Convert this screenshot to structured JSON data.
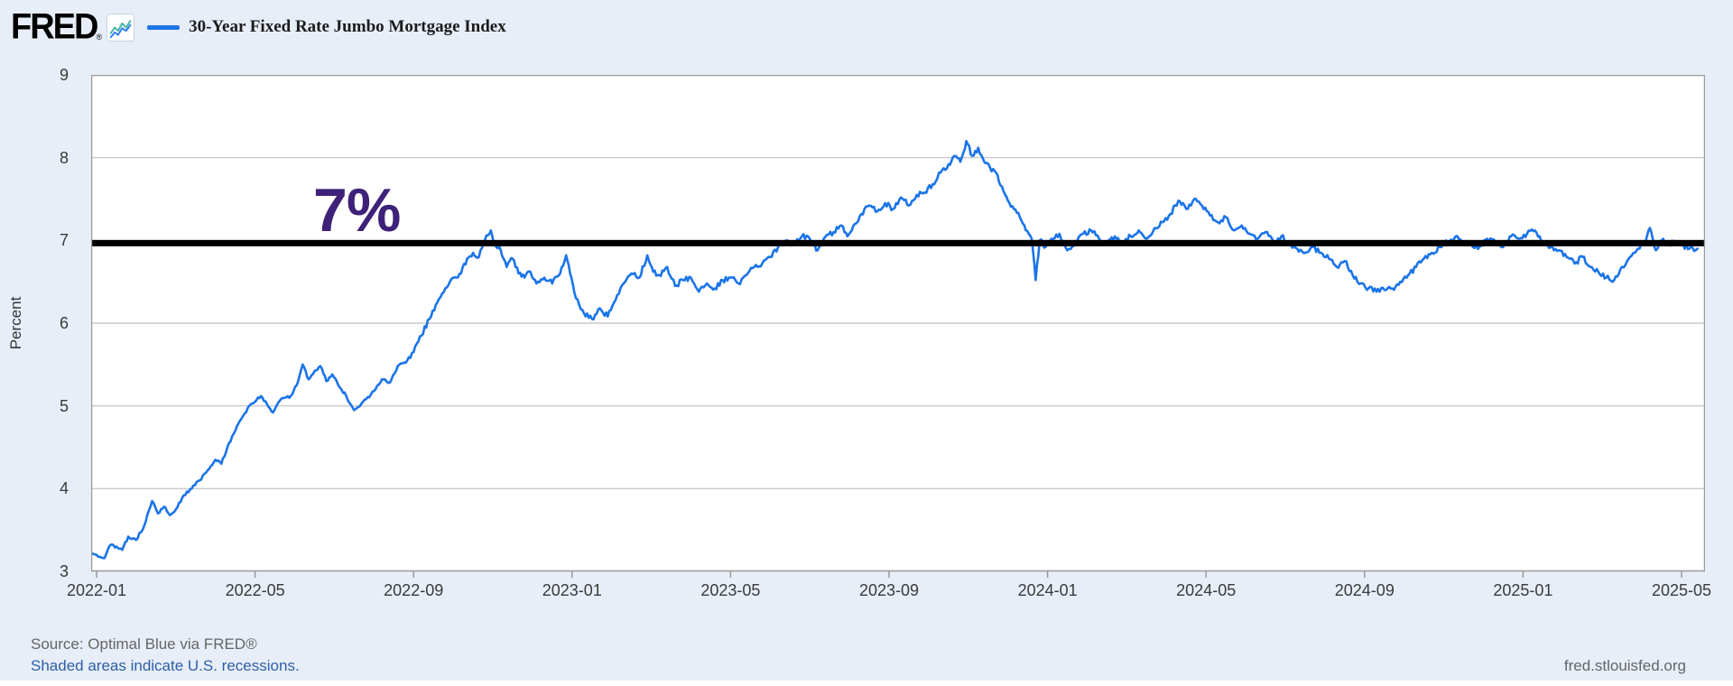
{
  "header": {
    "logo_text": "FRED",
    "registered_mark": "®",
    "series_label": "30-Year Fixed Rate Jumbo Mortgage Index"
  },
  "footer": {
    "source_text": "Source: Optimal Blue via FRED®",
    "recession_note": "Shaded areas indicate U.S. recessions.",
    "site_link": "fred.stlouisfed.org"
  },
  "annotation": {
    "label": "7%",
    "line_value": 7,
    "label_color": "#3e2178",
    "line_color": "#000000"
  },
  "colors": {
    "background": "#e7eef8",
    "plot_background": "#ffffff",
    "series_line": "#1b74e8",
    "grid": "#cccccc",
    "axis_border": "#999999",
    "tick_text": "#3a3a3a",
    "source_text": "#666666",
    "link_text": "#2f5fa5",
    "logo_icon_teal": "#45b5a9",
    "logo_icon_blue": "#2f7fe8"
  },
  "chart_data": {
    "type": "line",
    "title": "30-Year Fixed Rate Jumbo Mortgage Index",
    "xlabel": "",
    "ylabel": "Percent",
    "ylim": [
      3,
      9
    ],
    "yticks": [
      9,
      8,
      7,
      6,
      5,
      4,
      3
    ],
    "grid": "horizontal-only",
    "legend_position": "top-left",
    "x_tick_labels": [
      "2022-01",
      "2022-05",
      "2022-09",
      "2023-01",
      "2023-05",
      "2023-09",
      "2024-01",
      "2024-05",
      "2024-09",
      "2025-01",
      "2025-05"
    ],
    "x_tick_months": [
      0,
      4,
      8,
      12,
      16,
      20,
      24,
      28,
      32,
      36,
      40
    ],
    "x_range_months": [
      -0.13,
      40.4
    ],
    "annotation_line": {
      "value": 7,
      "label": "7%",
      "style": "thick-black-horizontal"
    },
    "series": [
      {
        "name": "30-Year Fixed Rate Jumbo Mortgage Index",
        "color": "#1b74e8",
        "units": "Percent",
        "points_month_value": [
          [
            -0.13,
            3.22
          ],
          [
            0,
            3.2
          ],
          [
            0.2,
            3.16
          ],
          [
            0.35,
            3.32
          ],
          [
            0.5,
            3.3
          ],
          [
            0.65,
            3.26
          ],
          [
            0.8,
            3.42
          ],
          [
            1.0,
            3.38
          ],
          [
            1.2,
            3.55
          ],
          [
            1.4,
            3.85
          ],
          [
            1.55,
            3.7
          ],
          [
            1.7,
            3.78
          ],
          [
            1.85,
            3.68
          ],
          [
            2.0,
            3.75
          ],
          [
            2.2,
            3.92
          ],
          [
            2.4,
            4.0
          ],
          [
            2.6,
            4.1
          ],
          [
            2.8,
            4.22
          ],
          [
            3.0,
            4.35
          ],
          [
            3.15,
            4.3
          ],
          [
            3.3,
            4.5
          ],
          [
            3.5,
            4.7
          ],
          [
            3.7,
            4.88
          ],
          [
            3.85,
            5.0
          ],
          [
            4.0,
            5.05
          ],
          [
            4.15,
            5.12
          ],
          [
            4.3,
            5.02
          ],
          [
            4.45,
            4.92
          ],
          [
            4.6,
            5.05
          ],
          [
            4.75,
            5.1
          ],
          [
            4.9,
            5.12
          ],
          [
            5.05,
            5.25
          ],
          [
            5.2,
            5.5
          ],
          [
            5.35,
            5.32
          ],
          [
            5.5,
            5.42
          ],
          [
            5.65,
            5.48
          ],
          [
            5.8,
            5.3
          ],
          [
            5.95,
            5.38
          ],
          [
            6.1,
            5.25
          ],
          [
            6.3,
            5.12
          ],
          [
            6.5,
            4.95
          ],
          [
            6.65,
            5.0
          ],
          [
            6.8,
            5.08
          ],
          [
            7.0,
            5.18
          ],
          [
            7.2,
            5.32
          ],
          [
            7.4,
            5.28
          ],
          [
            7.6,
            5.48
          ],
          [
            7.8,
            5.52
          ],
          [
            8.0,
            5.65
          ],
          [
            8.2,
            5.85
          ],
          [
            8.4,
            6.05
          ],
          [
            8.6,
            6.25
          ],
          [
            8.8,
            6.42
          ],
          [
            9.0,
            6.55
          ],
          [
            9.2,
            6.6
          ],
          [
            9.35,
            6.78
          ],
          [
            9.5,
            6.85
          ],
          [
            9.65,
            6.8
          ],
          [
            9.8,
            7.0
          ],
          [
            9.95,
            7.12
          ],
          [
            10.05,
            6.95
          ],
          [
            10.2,
            6.88
          ],
          [
            10.35,
            6.68
          ],
          [
            10.5,
            6.78
          ],
          [
            10.65,
            6.6
          ],
          [
            10.8,
            6.55
          ],
          [
            10.95,
            6.62
          ],
          [
            11.1,
            6.48
          ],
          [
            11.3,
            6.55
          ],
          [
            11.5,
            6.48
          ],
          [
            11.7,
            6.6
          ],
          [
            11.85,
            6.82
          ],
          [
            11.95,
            6.6
          ],
          [
            12.1,
            6.3
          ],
          [
            12.3,
            6.12
          ],
          [
            12.5,
            6.05
          ],
          [
            12.7,
            6.18
          ],
          [
            12.9,
            6.08
          ],
          [
            13.1,
            6.28
          ],
          [
            13.3,
            6.48
          ],
          [
            13.5,
            6.6
          ],
          [
            13.7,
            6.55
          ],
          [
            13.9,
            6.82
          ],
          [
            14.05,
            6.62
          ],
          [
            14.2,
            6.58
          ],
          [
            14.4,
            6.68
          ],
          [
            14.6,
            6.45
          ],
          [
            14.8,
            6.52
          ],
          [
            15.0,
            6.55
          ],
          [
            15.2,
            6.38
          ],
          [
            15.4,
            6.48
          ],
          [
            15.6,
            6.42
          ],
          [
            15.8,
            6.52
          ],
          [
            16.0,
            6.55
          ],
          [
            16.2,
            6.48
          ],
          [
            16.4,
            6.58
          ],
          [
            16.6,
            6.68
          ],
          [
            16.8,
            6.72
          ],
          [
            17.0,
            6.8
          ],
          [
            17.2,
            6.92
          ],
          [
            17.4,
            7.0
          ],
          [
            17.6,
            6.95
          ],
          [
            17.8,
            7.05
          ],
          [
            18.0,
            7.02
          ],
          [
            18.2,
            6.88
          ],
          [
            18.4,
            7.05
          ],
          [
            18.6,
            7.1
          ],
          [
            18.8,
            7.18
          ],
          [
            18.95,
            7.05
          ],
          [
            19.1,
            7.18
          ],
          [
            19.3,
            7.32
          ],
          [
            19.5,
            7.42
          ],
          [
            19.7,
            7.35
          ],
          [
            19.9,
            7.45
          ],
          [
            20.1,
            7.38
          ],
          [
            20.3,
            7.52
          ],
          [
            20.5,
            7.42
          ],
          [
            20.7,
            7.55
          ],
          [
            20.9,
            7.58
          ],
          [
            21.1,
            7.68
          ],
          [
            21.3,
            7.82
          ],
          [
            21.5,
            7.92
          ],
          [
            21.65,
            8.02
          ],
          [
            21.8,
            7.95
          ],
          [
            21.95,
            8.2
          ],
          [
            22.1,
            8.02
          ],
          [
            22.25,
            8.12
          ],
          [
            22.4,
            7.95
          ],
          [
            22.55,
            7.88
          ],
          [
            22.7,
            7.82
          ],
          [
            22.85,
            7.65
          ],
          [
            23.0,
            7.48
          ],
          [
            23.15,
            7.38
          ],
          [
            23.3,
            7.28
          ],
          [
            23.45,
            7.12
          ],
          [
            23.6,
            7.02
          ],
          [
            23.7,
            6.52
          ],
          [
            23.8,
            7.0
          ],
          [
            23.95,
            6.92
          ],
          [
            24.1,
            7.02
          ],
          [
            24.3,
            7.08
          ],
          [
            24.5,
            6.88
          ],
          [
            24.7,
            6.98
          ],
          [
            24.9,
            7.08
          ],
          [
            25.1,
            7.12
          ],
          [
            25.3,
            7.02
          ],
          [
            25.5,
            6.95
          ],
          [
            25.7,
            7.05
          ],
          [
            25.9,
            6.98
          ],
          [
            26.1,
            7.05
          ],
          [
            26.3,
            7.12
          ],
          [
            26.5,
            7.02
          ],
          [
            26.7,
            7.15
          ],
          [
            26.9,
            7.22
          ],
          [
            27.1,
            7.32
          ],
          [
            27.3,
            7.48
          ],
          [
            27.5,
            7.38
          ],
          [
            27.7,
            7.5
          ],
          [
            27.9,
            7.42
          ],
          [
            28.1,
            7.3
          ],
          [
            28.3,
            7.22
          ],
          [
            28.5,
            7.28
          ],
          [
            28.7,
            7.12
          ],
          [
            28.9,
            7.18
          ],
          [
            29.1,
            7.08
          ],
          [
            29.3,
            7.02
          ],
          [
            29.5,
            7.1
          ],
          [
            29.7,
            6.98
          ],
          [
            29.9,
            7.05
          ],
          [
            30.1,
            6.95
          ],
          [
            30.3,
            6.9
          ],
          [
            30.5,
            6.85
          ],
          [
            30.7,
            6.92
          ],
          [
            30.9,
            6.85
          ],
          [
            31.1,
            6.78
          ],
          [
            31.3,
            6.68
          ],
          [
            31.5,
            6.75
          ],
          [
            31.7,
            6.58
          ],
          [
            31.9,
            6.48
          ],
          [
            32.1,
            6.42
          ],
          [
            32.3,
            6.38
          ],
          [
            32.5,
            6.4
          ],
          [
            32.7,
            6.42
          ],
          [
            32.9,
            6.5
          ],
          [
            33.1,
            6.58
          ],
          [
            33.3,
            6.68
          ],
          [
            33.5,
            6.78
          ],
          [
            33.7,
            6.85
          ],
          [
            33.9,
            6.92
          ],
          [
            34.1,
            6.98
          ],
          [
            34.3,
            7.05
          ],
          [
            34.5,
            6.98
          ],
          [
            34.7,
            6.95
          ],
          [
            34.9,
            6.92
          ],
          [
            35.1,
            7.02
          ],
          [
            35.3,
            6.98
          ],
          [
            35.5,
            6.92
          ],
          [
            35.7,
            7.05
          ],
          [
            35.9,
            7.02
          ],
          [
            36.1,
            7.08
          ],
          [
            36.3,
            7.12
          ],
          [
            36.5,
            6.95
          ],
          [
            36.7,
            6.92
          ],
          [
            36.9,
            6.88
          ],
          [
            37.1,
            6.8
          ],
          [
            37.3,
            6.72
          ],
          [
            37.5,
            6.8
          ],
          [
            37.7,
            6.68
          ],
          [
            37.9,
            6.62
          ],
          [
            38.1,
            6.55
          ],
          [
            38.3,
            6.52
          ],
          [
            38.5,
            6.68
          ],
          [
            38.7,
            6.8
          ],
          [
            38.9,
            6.9
          ],
          [
            39.1,
            7.0
          ],
          [
            39.2,
            7.15
          ],
          [
            39.35,
            6.88
          ],
          [
            39.5,
            7.0
          ],
          [
            39.65,
            6.95
          ],
          [
            39.8,
            6.98
          ],
          [
            40.0,
            6.95
          ],
          [
            40.2,
            6.9
          ],
          [
            40.4,
            6.9
          ]
        ]
      }
    ]
  }
}
